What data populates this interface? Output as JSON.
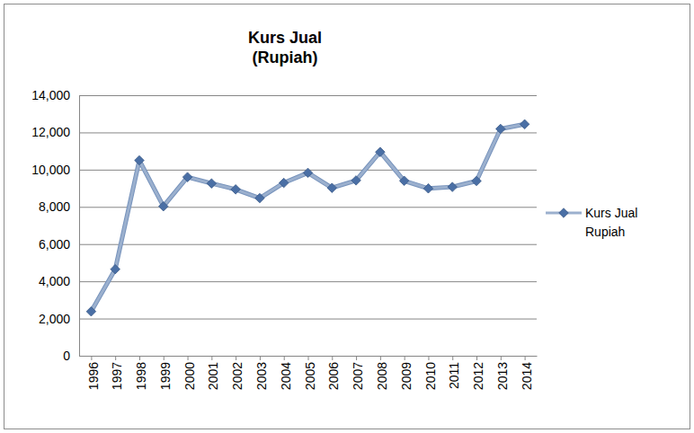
{
  "chart_data": {
    "type": "line",
    "title": "Kurs Jual\n(Rupiah)",
    "categories": [
      "1996",
      "1997",
      "1998",
      "1999",
      "2000",
      "2001",
      "2002",
      "2003",
      "2004",
      "2005",
      "2006",
      "2007",
      "2008",
      "2009",
      "2010",
      "2011",
      "2012",
      "2013",
      "2014"
    ],
    "series": [
      {
        "name": "Kurs Jual\nRupiah",
        "color": "#4a6fa5",
        "marker": "diamond",
        "values": [
          2380,
          4650,
          10500,
          8030,
          9600,
          9260,
          8940,
          8470,
          9290,
          9830,
          9020,
          9420,
          10950,
          9400,
          8990,
          9070,
          9390,
          12190,
          12440
        ]
      }
    ],
    "ylim": [
      0,
      14000
    ],
    "yticks": [
      0,
      {
        "value": 2000,
        "label": "2,000"
      },
      {
        "value": 4000,
        "label": "4,000"
      },
      {
        "value": 6000,
        "label": "6,000"
      },
      {
        "value": 8000,
        "label": "8,000"
      },
      {
        "value": 10000,
        "label": "10,000"
      },
      {
        "value": 12000,
        "label": "12,000"
      },
      {
        "value": 14000,
        "label": "14,000"
      }
    ],
    "grid": true,
    "legend": "right"
  }
}
